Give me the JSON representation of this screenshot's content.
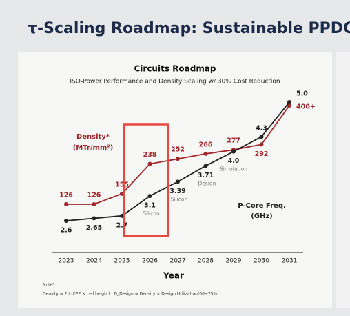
{
  "slide_title": "τ-Scaling Roadmap: Sustainable PPDC",
  "note": {
    "heading": "Note*",
    "formula": "Density = 2 / (CPP × cell height) ; D_Design = Density × Design Utilization(60~75%)"
  },
  "chart_data": {
    "type": "line",
    "title": "Circuits Roadmap",
    "subtitle": "ISO-Power Performance and Density Scaling w/ 30% Cost Reduction",
    "x_label": "Year",
    "categories": [
      "2023",
      "2024",
      "2025",
      "2026",
      "2027",
      "2028",
      "2029",
      "2030",
      "2031"
    ],
    "series": [
      {
        "name": "Density*",
        "unit": "(MTr/mm²)",
        "color": "#a3262a",
        "values": [
          126,
          126,
          155,
          238,
          252,
          266,
          277,
          292,
          400
        ],
        "value_labels": [
          "126",
          "126",
          "155",
          "238",
          "252",
          "266",
          "277",
          "292",
          "400+"
        ]
      },
      {
        "name": "P-Core Freq.",
        "unit": "(GHz)",
        "color": "#222222",
        "axis": "y2",
        "values": [
          2.6,
          2.65,
          2.7,
          3.1,
          3.39,
          3.71,
          4.0,
          4.3,
          5.0
        ],
        "value_labels": [
          "2.6",
          "2.65",
          "2.7",
          "3.1",
          "3.39",
          "3.71",
          "4.0",
          "4.3",
          "5.0"
        ],
        "point_notes": [
          null,
          null,
          null,
          "Silicon",
          "Silicon",
          "Design",
          "Simulation",
          null,
          null
        ]
      }
    ]
  }
}
